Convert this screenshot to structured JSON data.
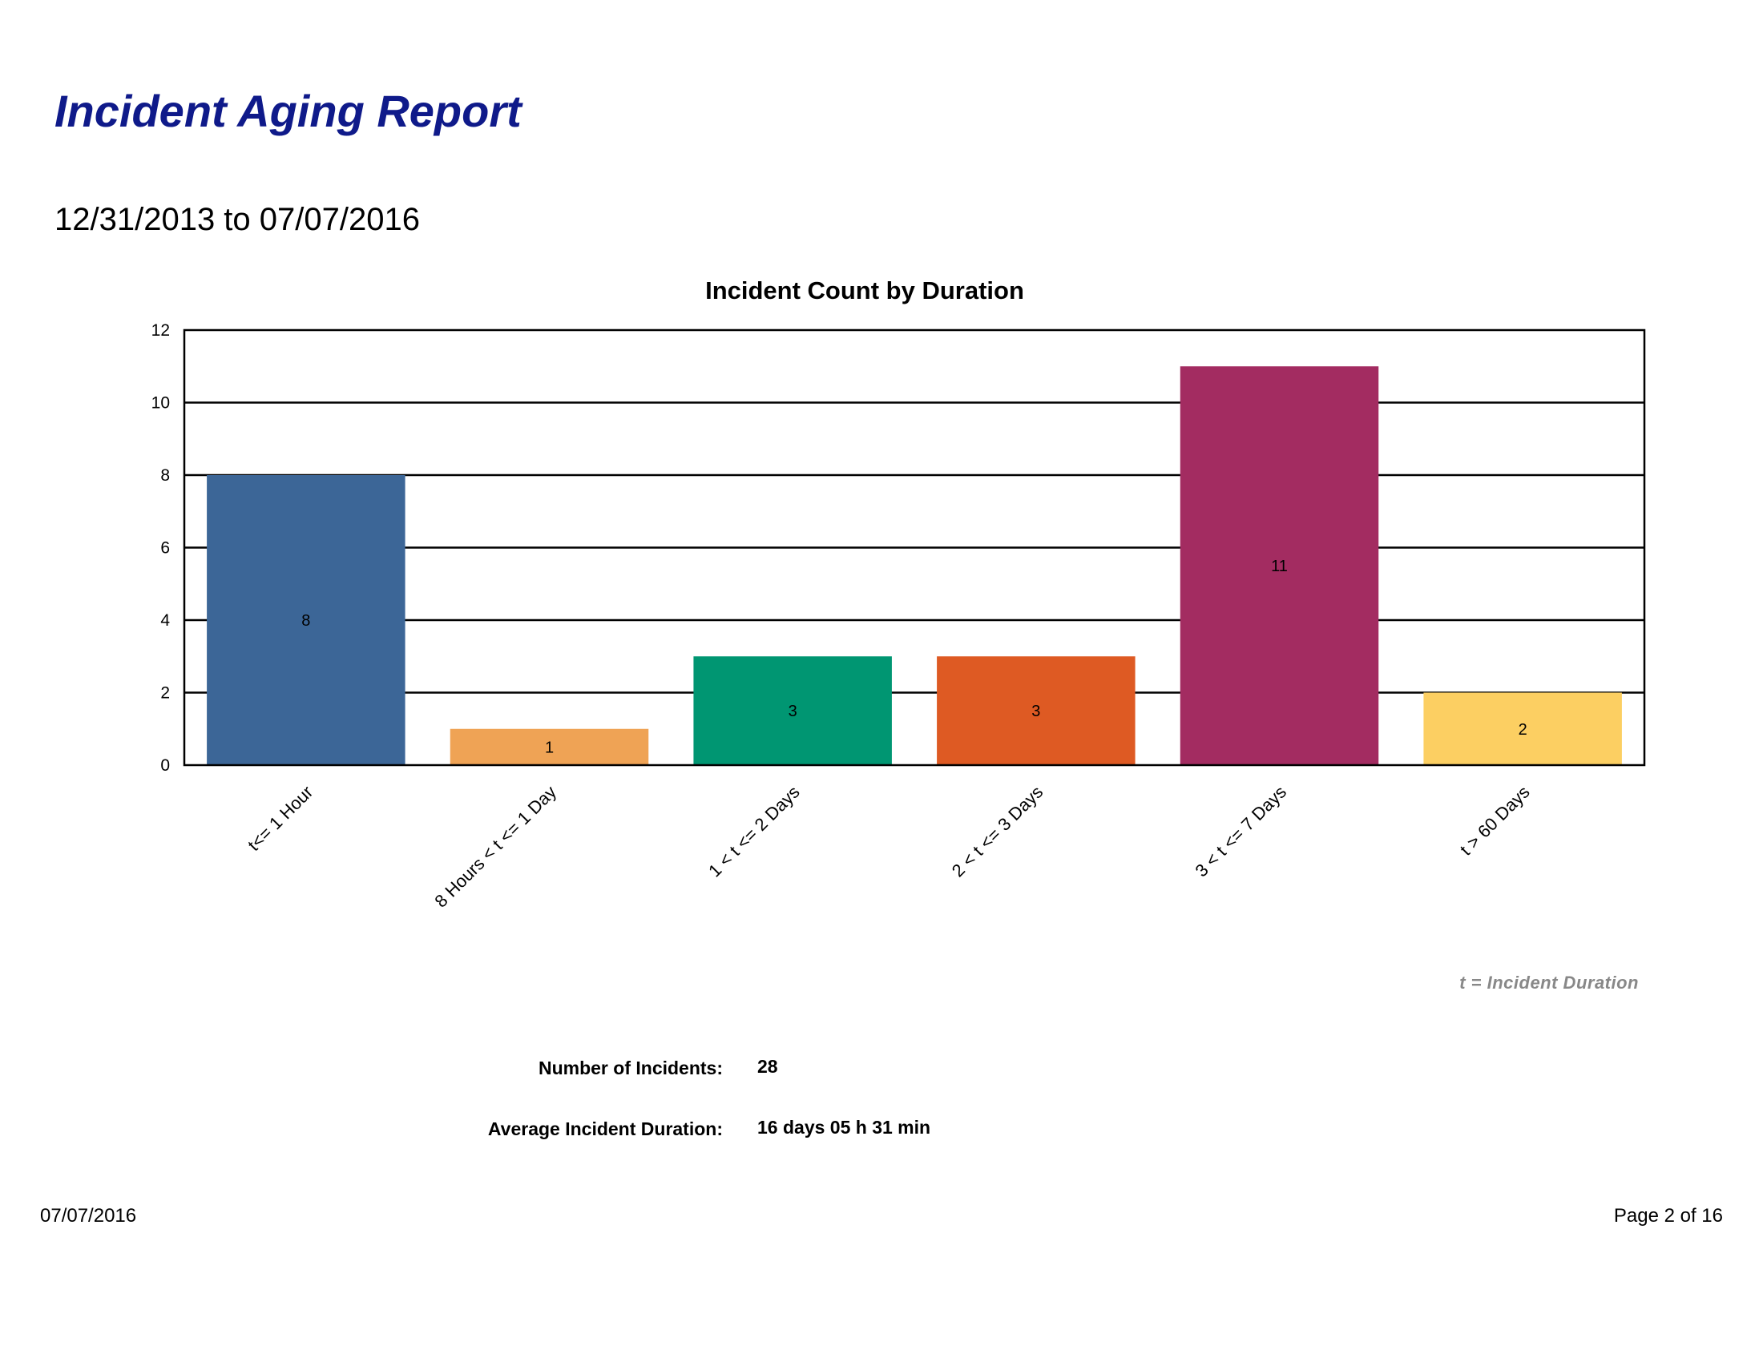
{
  "report": {
    "title": "Incident Aging Report",
    "date_range": "12/31/2013 to 07/07/2016"
  },
  "chart_data": {
    "type": "bar",
    "title": "Incident Count by Duration",
    "categories": [
      "t<= 1 Hour",
      "8 Hours < t <= 1 Day",
      "1 < t <= 2 Days",
      "2 < t <= 3 Days",
      "3 < t <= 7 Days",
      "t > 60 Days"
    ],
    "values": [
      8,
      1,
      3,
      3,
      11,
      2
    ],
    "colors": [
      "#3c6697",
      "#efa355",
      "#009672",
      "#de5a23",
      "#a32c61",
      "#fccf62"
    ],
    "ylim": [
      0,
      12
    ],
    "yticks": [
      0,
      2,
      4,
      6,
      8,
      10,
      12
    ],
    "grid": true,
    "legend": "none"
  },
  "note": "t = Incident Duration",
  "stats": {
    "incidents_label": "Number of Incidents:",
    "incidents_value": "28",
    "avg_label": "Average Incident Duration:",
    "avg_value": "16 days 05 h 31 min"
  },
  "footer": {
    "date": "07/07/2016",
    "page": "Page 2 of 16"
  }
}
